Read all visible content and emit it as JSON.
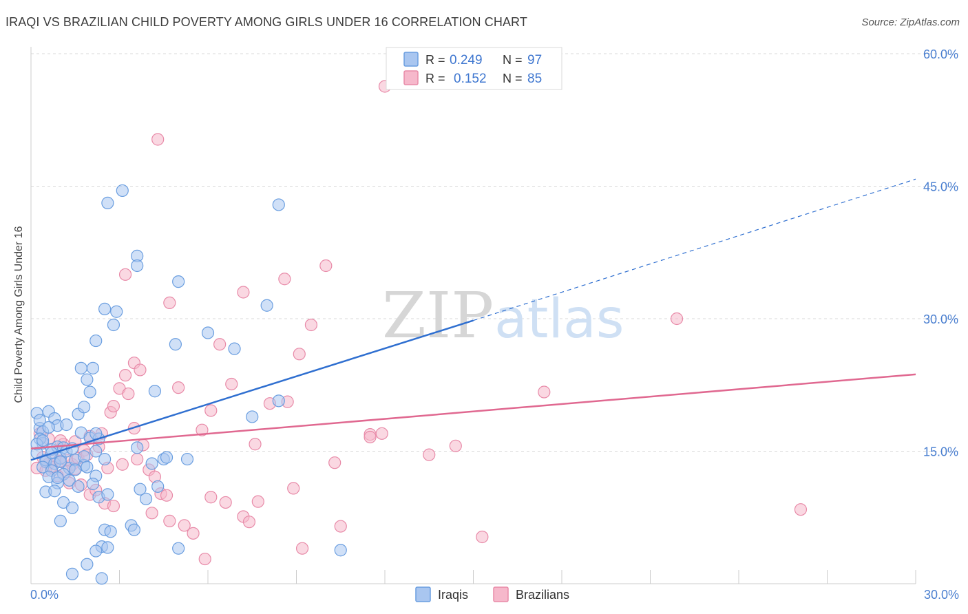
{
  "title": "IRAQI VS BRAZILIAN CHILD POVERTY AMONG GIRLS UNDER 16 CORRELATION CHART",
  "source": "Source: ZipAtlas.com",
  "watermark": {
    "zip": "ZIP",
    "atlas": "atlas"
  },
  "colors": {
    "iraqis_fill": "#a9c6f0",
    "iraqis_stroke": "#6a9ee0",
    "iraqis_line": "#2f6fd0",
    "brazilians_fill": "#f6b8cb",
    "brazilians_stroke": "#e88aa8",
    "brazilians_line": "#e06890",
    "tick_label": "#4a7fd0",
    "grid": "#d8d8d8"
  },
  "legend_box": {
    "rows": [
      {
        "r_label": "R =",
        "r_value": "0.249",
        "n_label": "N =",
        "n_value": "97"
      },
      {
        "r_label": "R =",
        "r_value": "0.152",
        "n_label": "N =",
        "n_value": "85"
      }
    ]
  },
  "chart_data": {
    "type": "scatter",
    "title": "IRAQI VS BRAZILIAN CHILD POVERTY AMONG GIRLS UNDER 16 CORRELATION CHART",
    "xlabel": "",
    "ylabel": "Child Poverty Among Girls Under 16",
    "xlim": [
      0,
      30
    ],
    "ylim": [
      0,
      60
    ],
    "x_tick_labels": [
      "0.0%",
      "30.0%"
    ],
    "y_ticks": [
      {
        "value": 15,
        "label": "15.0%"
      },
      {
        "value": 30,
        "label": "30.0%"
      },
      {
        "value": 45,
        "label": "45.0%"
      },
      {
        "value": 60,
        "label": "60.0%"
      }
    ],
    "grid": true,
    "legend": [
      "Iraqis",
      "Brazilians"
    ],
    "legend_position": "bottom",
    "series": [
      {
        "name": "Iraqis",
        "r": 0.249,
        "n": 97,
        "trend": {
          "x_solid": [
            0,
            15
          ],
          "y_solid": [
            14.0,
            29.8
          ],
          "x_dashed": [
            15,
            30
          ],
          "y_dashed": [
            29.8,
            45.8
          ]
        },
        "points": [
          [
            0.2,
            19.3
          ],
          [
            0.3,
            17.6
          ],
          [
            0.4,
            15.9
          ],
          [
            0.2,
            14.8
          ],
          [
            0.5,
            13.8
          ],
          [
            0.4,
            17.2
          ],
          [
            0.6,
            19.5
          ],
          [
            0.8,
            18.7
          ],
          [
            0.3,
            16.4
          ],
          [
            0.7,
            15.2
          ],
          [
            0.9,
            15.5
          ],
          [
            1.1,
            15.4
          ],
          [
            0.5,
            14.0
          ],
          [
            0.8,
            13.6
          ],
          [
            1.0,
            14.2
          ],
          [
            1.2,
            15.0
          ],
          [
            0.4,
            13.2
          ],
          [
            0.7,
            12.8
          ],
          [
            1.3,
            13.1
          ],
          [
            0.6,
            12.1
          ],
          [
            1.1,
            12.4
          ],
          [
            1.5,
            14.0
          ],
          [
            1.8,
            13.4
          ],
          [
            0.9,
            11.4
          ],
          [
            1.3,
            11.7
          ],
          [
            0.5,
            10.4
          ],
          [
            0.8,
            10.5
          ],
          [
            1.1,
            9.2
          ],
          [
            1.4,
            8.6
          ],
          [
            1.0,
            7.1
          ],
          [
            0.3,
            18.5
          ],
          [
            0.9,
            17.9
          ],
          [
            1.6,
            19.2
          ],
          [
            1.7,
            17.1
          ],
          [
            2.0,
            16.5
          ],
          [
            2.3,
            16.4
          ],
          [
            1.4,
            15.3
          ],
          [
            1.8,
            14.4
          ],
          [
            2.5,
            14.1
          ],
          [
            1.2,
            18.0
          ],
          [
            1.7,
            24.4
          ],
          [
            1.9,
            23.1
          ],
          [
            2.1,
            24.4
          ],
          [
            2.0,
            21.7
          ],
          [
            2.2,
            17.0
          ],
          [
            2.2,
            15.0
          ],
          [
            1.9,
            13.2
          ],
          [
            2.2,
            12.2
          ],
          [
            2.1,
            11.3
          ],
          [
            2.3,
            9.8
          ],
          [
            2.6,
            10.1
          ],
          [
            2.5,
            6.1
          ],
          [
            2.7,
            5.9
          ],
          [
            2.4,
            4.2
          ],
          [
            2.6,
            4.1
          ],
          [
            2.2,
            3.7
          ],
          [
            1.9,
            2.2
          ],
          [
            1.4,
            1.1
          ],
          [
            2.4,
            0.6
          ],
          [
            1.8,
            20.0
          ],
          [
            2.5,
            31.1
          ],
          [
            2.9,
            30.8
          ],
          [
            2.8,
            29.3
          ],
          [
            2.2,
            27.5
          ],
          [
            2.6,
            43.1
          ],
          [
            3.1,
            44.5
          ],
          [
            3.6,
            37.1
          ],
          [
            3.6,
            36.0
          ],
          [
            3.6,
            15.4
          ],
          [
            3.4,
            6.6
          ],
          [
            3.5,
            6.1
          ],
          [
            3.9,
            9.6
          ],
          [
            3.7,
            10.7
          ],
          [
            4.3,
            11.0
          ],
          [
            4.1,
            13.6
          ],
          [
            4.5,
            14.1
          ],
          [
            4.6,
            14.3
          ],
          [
            4.2,
            21.8
          ],
          [
            4.9,
            27.1
          ],
          [
            5.0,
            34.2
          ],
          [
            5.3,
            14.1
          ],
          [
            5.0,
            4.0
          ],
          [
            6.0,
            28.4
          ],
          [
            6.9,
            26.6
          ],
          [
            7.5,
            18.9
          ],
          [
            8.0,
            31.5
          ],
          [
            8.4,
            20.7
          ],
          [
            8.4,
            42.9
          ],
          [
            10.5,
            3.8
          ],
          [
            0.6,
            17.7
          ],
          [
            0.2,
            15.8
          ],
          [
            0.4,
            16.2
          ],
          [
            0.7,
            14.8
          ],
          [
            1.0,
            13.8
          ],
          [
            1.5,
            12.9
          ],
          [
            1.6,
            11.0
          ],
          [
            0.9,
            12.0
          ]
        ]
      },
      {
        "name": "Brazilians",
        "r": 0.152,
        "n": 85,
        "trend": {
          "x_solid": [
            0,
            30
          ],
          "y_solid": [
            15.3,
            23.7
          ]
        },
        "points": [
          [
            0.2,
            13.1
          ],
          [
            0.4,
            14.3
          ],
          [
            0.6,
            13.6
          ],
          [
            0.8,
            14.1
          ],
          [
            1.0,
            13.9
          ],
          [
            1.2,
            12.7
          ],
          [
            1.4,
            13.5
          ],
          [
            1.6,
            14.2
          ],
          [
            1.8,
            15.1
          ],
          [
            0.5,
            12.8
          ],
          [
            0.9,
            12.2
          ],
          [
            1.3,
            11.4
          ],
          [
            1.7,
            11.2
          ],
          [
            2.0,
            10.1
          ],
          [
            2.2,
            10.6
          ],
          [
            2.5,
            9.1
          ],
          [
            2.8,
            8.8
          ],
          [
            1.1,
            15.8
          ],
          [
            1.5,
            16.1
          ],
          [
            2.0,
            16.7
          ],
          [
            2.4,
            17.0
          ],
          [
            2.7,
            19.4
          ],
          [
            2.8,
            20.1
          ],
          [
            3.0,
            22.1
          ],
          [
            3.2,
            23.6
          ],
          [
            3.5,
            25.0
          ],
          [
            3.3,
            21.5
          ],
          [
            3.7,
            24.2
          ],
          [
            3.5,
            17.6
          ],
          [
            3.8,
            15.7
          ],
          [
            3.6,
            14.1
          ],
          [
            4.0,
            12.9
          ],
          [
            4.2,
            12.1
          ],
          [
            4.4,
            10.2
          ],
          [
            4.6,
            10.0
          ],
          [
            4.1,
            8.0
          ],
          [
            4.7,
            7.1
          ],
          [
            3.2,
            35.0
          ],
          [
            4.3,
            50.3
          ],
          [
            4.7,
            31.8
          ],
          [
            5.0,
            22.2
          ],
          [
            5.2,
            6.6
          ],
          [
            5.5,
            5.7
          ],
          [
            5.9,
            2.8
          ],
          [
            5.8,
            17.4
          ],
          [
            6.1,
            19.6
          ],
          [
            6.4,
            27.1
          ],
          [
            6.1,
            9.8
          ],
          [
            6.6,
            9.2
          ],
          [
            6.8,
            22.6
          ],
          [
            7.2,
            7.6
          ],
          [
            7.4,
            7.0
          ],
          [
            7.7,
            9.3
          ],
          [
            7.2,
            33.0
          ],
          [
            7.6,
            15.8
          ],
          [
            8.1,
            20.4
          ],
          [
            8.7,
            20.6
          ],
          [
            8.9,
            10.8
          ],
          [
            8.6,
            34.5
          ],
          [
            9.1,
            26.0
          ],
          [
            9.5,
            29.3
          ],
          [
            9.2,
            4.0
          ],
          [
            10.0,
            36.0
          ],
          [
            10.3,
            13.7
          ],
          [
            10.5,
            6.5
          ],
          [
            11.5,
            16.9
          ],
          [
            11.5,
            16.6
          ],
          [
            11.9,
            17.0
          ],
          [
            12.0,
            56.3
          ],
          [
            13.5,
            14.6
          ],
          [
            14.4,
            15.6
          ],
          [
            15.3,
            5.3
          ],
          [
            17.4,
            21.7
          ],
          [
            21.9,
            30.0
          ],
          [
            26.1,
            8.4
          ],
          [
            0.3,
            17.0
          ],
          [
            0.6,
            16.4
          ],
          [
            1.0,
            16.2
          ],
          [
            1.5,
            13.0
          ],
          [
            2.3,
            15.5
          ],
          [
            2.6,
            13.1
          ],
          [
            3.1,
            13.5
          ],
          [
            1.9,
            14.6
          ],
          [
            0.7,
            13.2
          ],
          [
            1.2,
            14.0
          ]
        ]
      }
    ]
  },
  "bottom_legend": {
    "items": [
      "Iraqis",
      "Brazilians"
    ]
  }
}
